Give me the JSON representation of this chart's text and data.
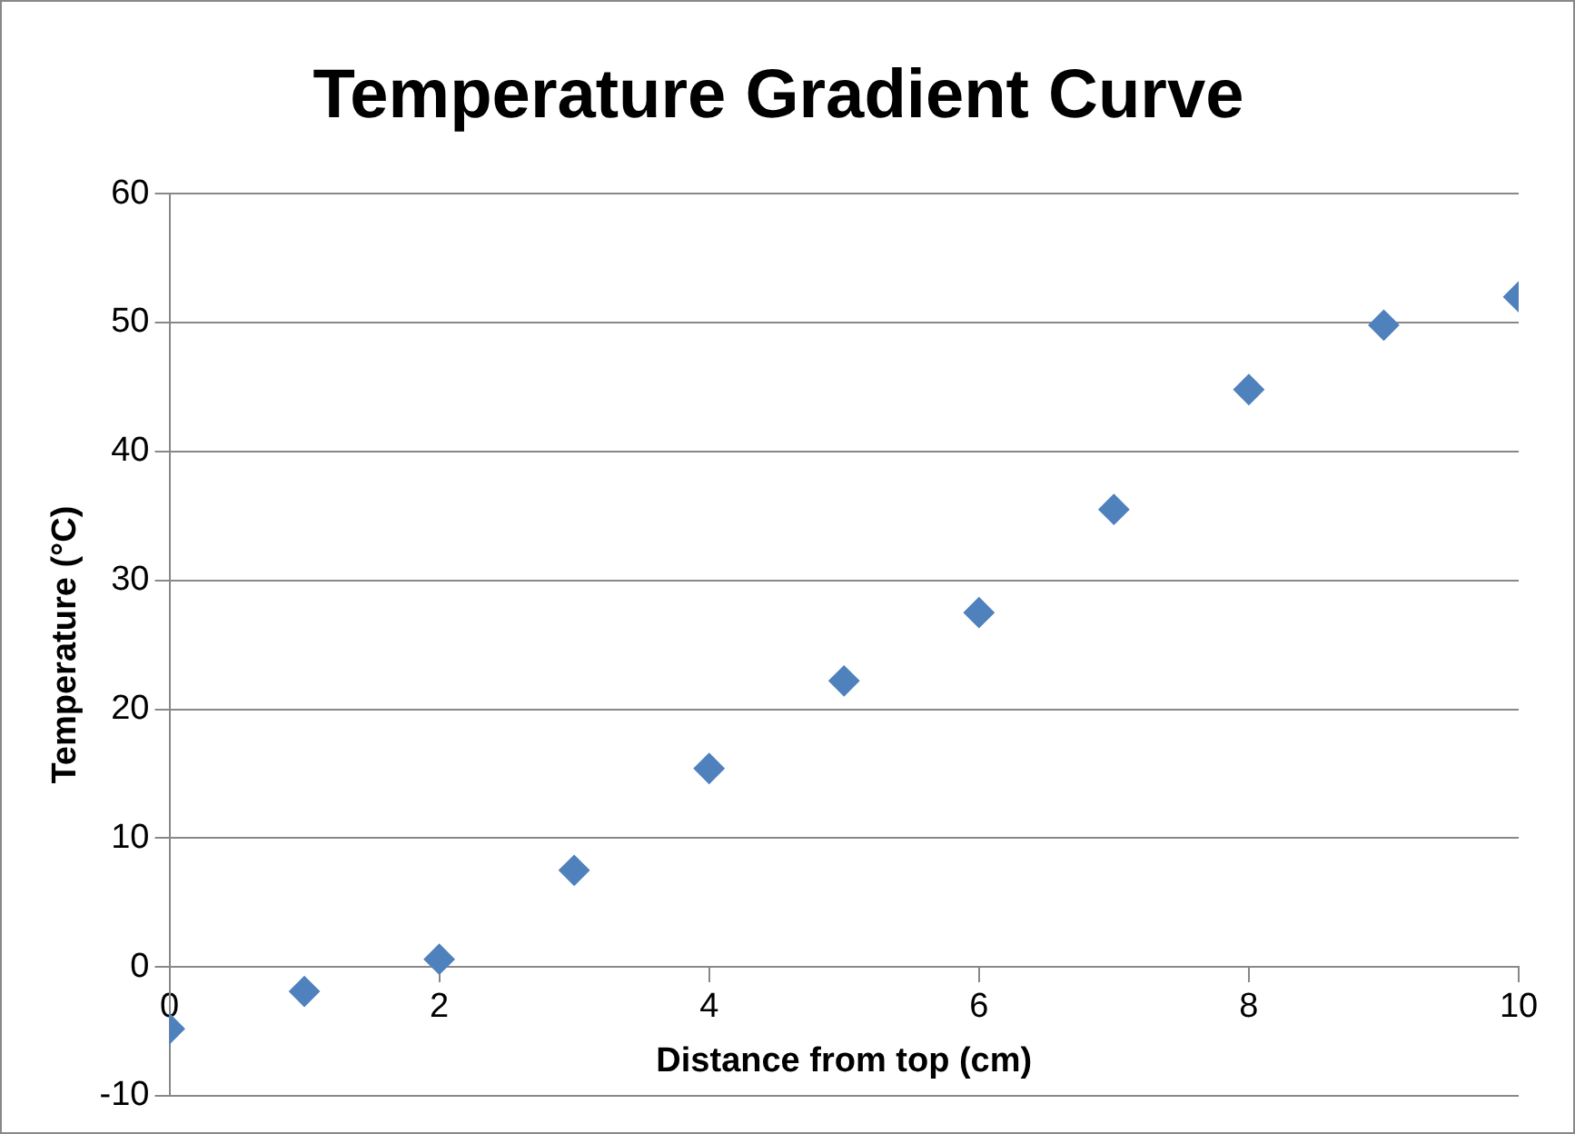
{
  "chart_data": {
    "type": "scatter",
    "title": "Temperature Gradient Curve",
    "xlabel": "Distance from top (cm)",
    "ylabel": "Temperature (°C)",
    "x": [
      0,
      1,
      2,
      3,
      4,
      5,
      6,
      7,
      8,
      9,
      10
    ],
    "series": [
      {
        "color": "#4f81bd",
        "values": [
          -4.8,
          -1.9,
          0.6,
          7.5,
          15.4,
          22.2,
          27.5,
          35.5,
          44.8,
          49.8,
          52
        ]
      }
    ],
    "xlim": [
      0,
      10
    ],
    "xticks": [
      0,
      2,
      4,
      6,
      8,
      10
    ],
    "ylim": [
      -10,
      60
    ],
    "yticks": [
      -10,
      0,
      10,
      20,
      30,
      40,
      50,
      60
    ],
    "grid": "y",
    "marker": "diamond",
    "legend": false
  }
}
